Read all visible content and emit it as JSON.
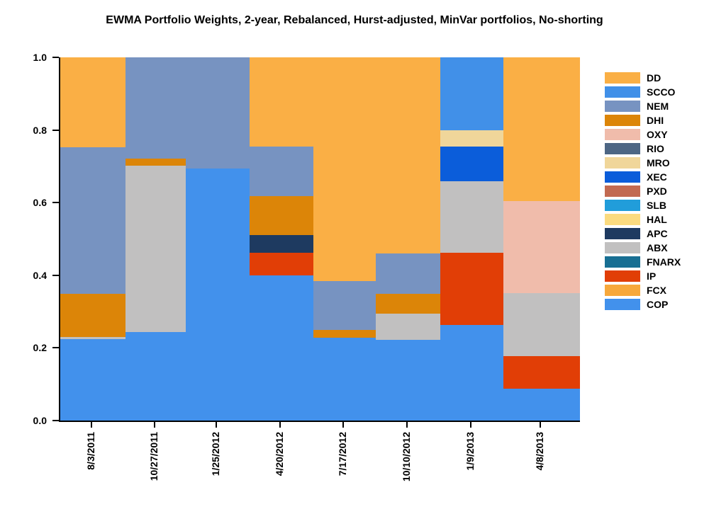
{
  "chart_data": {
    "type": "bar",
    "stacked": true,
    "normalized_100pct": true,
    "title": "EWMA Portfolio Weights, 2-year, Rebalanced, Hurst-adjusted, MinVar portfolios, No-shorting",
    "xlabel": "",
    "ylabel": "",
    "ylim": [
      0,
      1
    ],
    "grid": false,
    "legend_position": "right",
    "y_ticks": [
      "0.0",
      "0.2",
      "0.4",
      "0.6",
      "0.8",
      "1.0"
    ],
    "categories": [
      "8/3/2011",
      "10/27/2011",
      "1/25/2012",
      "4/20/2012",
      "7/17/2012",
      "10/10/2012",
      "1/9/2013",
      "4/8/2013"
    ],
    "col_widths_pct": [
      12.55,
      11.6,
      12.28,
      12.28,
      12.01,
      12.41,
      12.14,
      14.73
    ],
    "legend_order": [
      "DD",
      "SCCO",
      "NEM",
      "DHI",
      "OXY",
      "RIO",
      "MRO",
      "XEC",
      "PXD",
      "SLB",
      "HAL",
      "APC",
      "ABX",
      "FNARX",
      "IP",
      "FCX",
      "COP"
    ],
    "colors": {
      "DD": "#FAAF45",
      "SCCO": "#4190E8",
      "NEM": "#7793C1",
      "DHI": "#DC8508",
      "OXY": "#F0BCAB",
      "RIO": "#4D6684",
      "MRO": "#F0D69A",
      "XEC": "#0B5DDA",
      "PXD": "#C26A51",
      "SLB": "#219DDA",
      "HAL": "#FBDB80",
      "APC": "#1E3A60",
      "ABX": "#C1C0C0",
      "FNARX": "#186F93",
      "IP": "#E13E06",
      "FCX": "#F7A83B",
      "COP": "#4291EC"
    },
    "series": [
      {
        "name": "COP",
        "values": [
          0.224,
          0.244,
          0.694,
          0.4,
          0.228,
          0.222,
          0.263,
          0.088
        ]
      },
      {
        "name": "FCX",
        "values": [
          0,
          0,
          0,
          0,
          0,
          0,
          0,
          0
        ]
      },
      {
        "name": "IP",
        "values": [
          0,
          0,
          0,
          0.062,
          0,
          0,
          0.199,
          0.089
        ]
      },
      {
        "name": "FNARX",
        "values": [
          0,
          0,
          0,
          0,
          0,
          0,
          0,
          0
        ]
      },
      {
        "name": "ABX",
        "values": [
          0.006,
          0.458,
          0,
          0,
          0,
          0.072,
          0.197,
          0.174
        ]
      },
      {
        "name": "APC",
        "values": [
          0,
          0,
          0,
          0.049,
          0,
          0,
          0,
          0
        ]
      },
      {
        "name": "HAL",
        "values": [
          0,
          0,
          0,
          0,
          0,
          0,
          0,
          0
        ]
      },
      {
        "name": "SLB",
        "values": [
          0,
          0,
          0,
          0,
          0,
          0,
          0,
          0
        ]
      },
      {
        "name": "PXD",
        "values": [
          0,
          0,
          0,
          0,
          0,
          0,
          0,
          0
        ]
      },
      {
        "name": "XEC",
        "values": [
          0,
          0,
          0,
          0,
          0,
          0,
          0.095,
          0
        ]
      },
      {
        "name": "MRO",
        "values": [
          0,
          0,
          0,
          0,
          0,
          0,
          0.045,
          0
        ]
      },
      {
        "name": "RIO",
        "values": [
          0,
          0,
          0,
          0,
          0,
          0,
          0,
          0
        ]
      },
      {
        "name": "OXY",
        "values": [
          0,
          0,
          0,
          0,
          0,
          0,
          0,
          0.253
        ]
      },
      {
        "name": "DHI",
        "values": [
          0.119,
          0.019,
          0,
          0.107,
          0.022,
          0.055,
          0,
          0
        ]
      },
      {
        "name": "NEM",
        "values": [
          0.404,
          0.279,
          0.306,
          0.136,
          0.134,
          0.111,
          0,
          0
        ]
      },
      {
        "name": "SCCO",
        "values": [
          0,
          0,
          0,
          0,
          0,
          0,
          0.201,
          0
        ]
      },
      {
        "name": "DD",
        "values": [
          0.247,
          0,
          0,
          0.246,
          0.616,
          0.54,
          0,
          0.396
        ]
      }
    ]
  }
}
